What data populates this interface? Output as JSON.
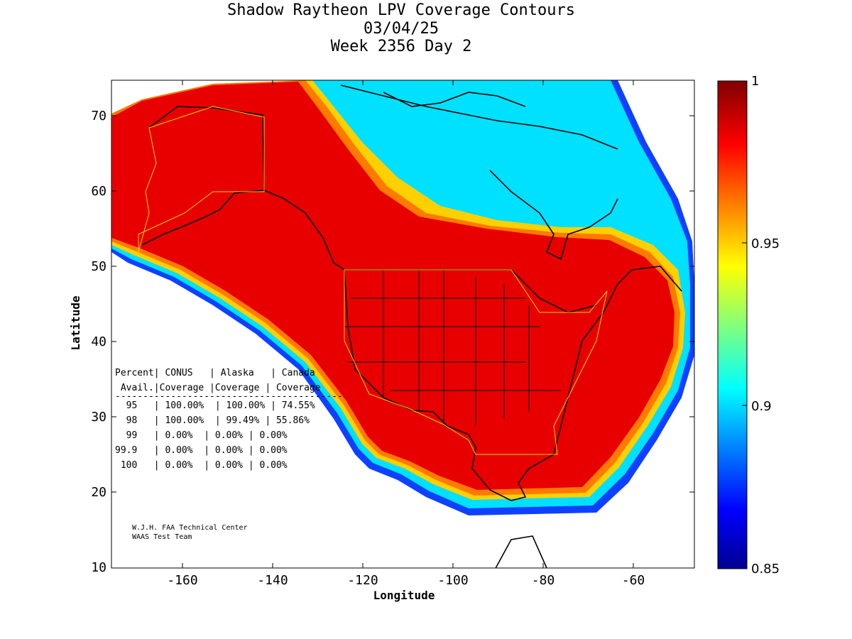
{
  "title": {
    "line1": "Shadow Raytheon LPV Coverage Contours",
    "line2": "03/04/25",
    "line3": "Week 2356 Day 2"
  },
  "axes": {
    "xlabel": "Longitude",
    "ylabel": "Latitude",
    "xticks": [
      "-160",
      "-140",
      "-120",
      "-100",
      "-80",
      "-60"
    ],
    "yticks": [
      "70",
      "60",
      "50",
      "40",
      "30",
      "20",
      "10"
    ]
  },
  "colorbar": {
    "ticks": [
      "1",
      "0.95",
      "0.9",
      "0.85"
    ],
    "range": [
      0.85,
      1.0
    ],
    "colormap": "jet"
  },
  "table": {
    "header1": "Percent| CONUS   | Alaska   | Canada",
    "header2": " Avail.|Coverage |Coverage | Coverage",
    "separator": "-----------------------------------------",
    "rows": [
      "  95   | 100.00%  | 100.00% | 74.55%",
      "  98   | 100.00%  | 99.49% | 55.86%",
      "  99   | 0.00%  | 0.00% | 0.00%",
      "99.9   | 0.00%  | 0.00% | 0.00%",
      " 100   | 0.00%  | 0.00% | 0.00%"
    ]
  },
  "credit": {
    "line1": "W.J.H. FAA Technical Center",
    "line2": "WAAS Test Team"
  },
  "colors": {
    "high_coverage": "#e60000",
    "mid": "#00e5ff",
    "low": "#0000a0"
  }
}
